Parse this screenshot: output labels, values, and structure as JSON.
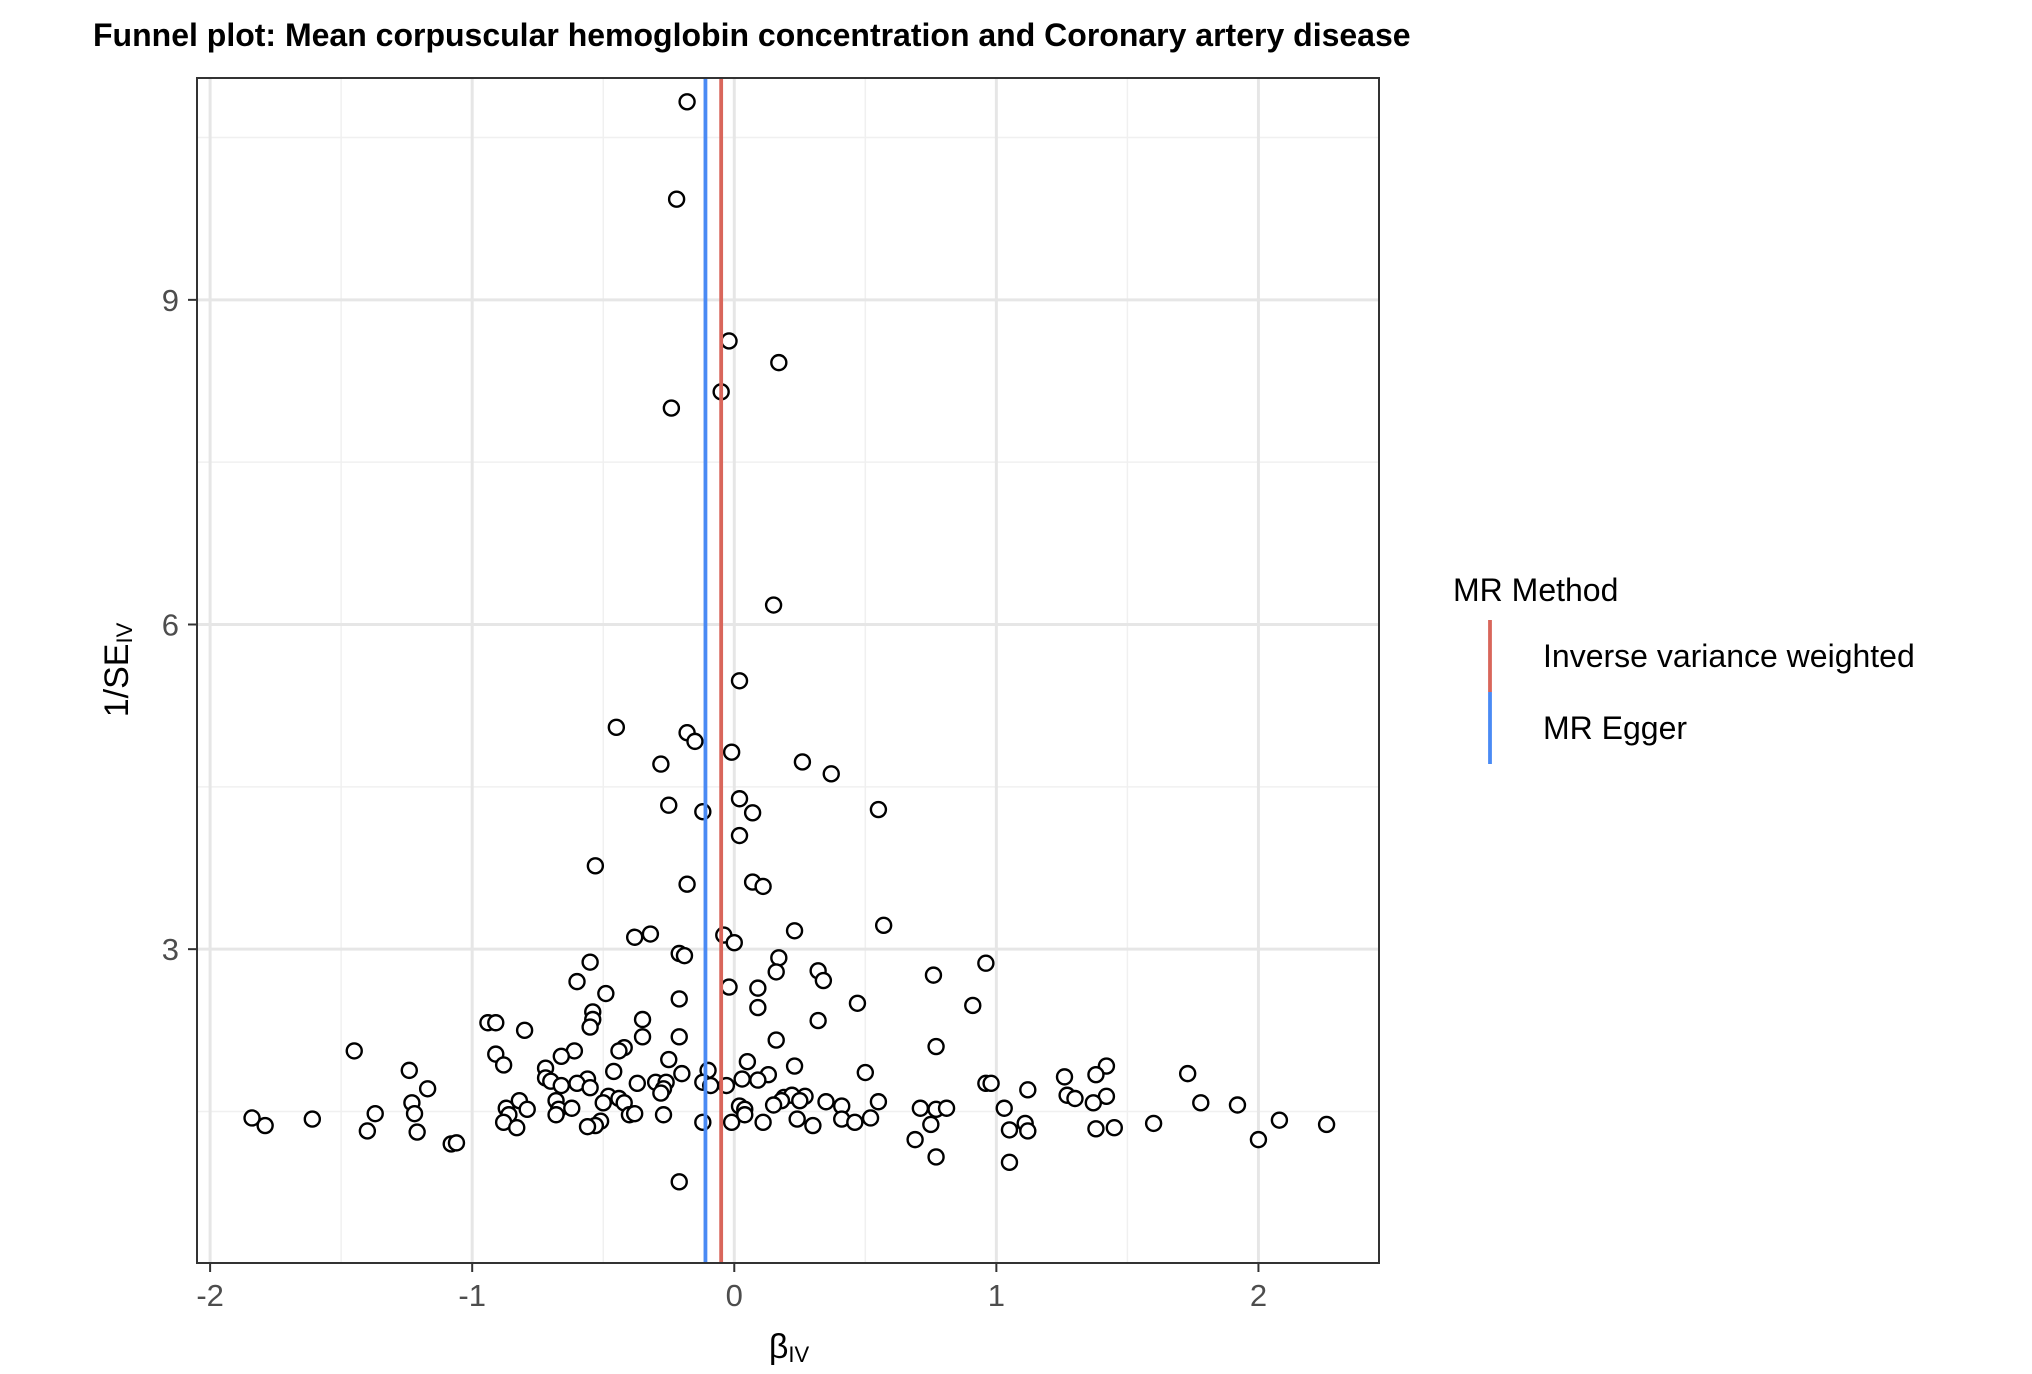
{
  "chart_data": {
    "type": "scatter",
    "title": "Funnel plot: Mean corpuscular hemoglobin concentration and Coronary artery disease",
    "xlabel": {
      "main": "β",
      "sub": "IV"
    },
    "ylabel": {
      "main": "1/SE",
      "sub": "IV"
    },
    "xlim": [
      -2.05,
      2.46
    ],
    "ylim": [
      0.1,
      11.05
    ],
    "x_ticks": [
      -2,
      -1,
      0,
      1,
      2
    ],
    "x_tick_labels": [
      "-2",
      "-1",
      "0",
      "1",
      "2"
    ],
    "y_ticks": [
      3,
      6,
      9
    ],
    "y_tick_labels": [
      "3",
      "6",
      "9"
    ],
    "y_minor_ticks": [
      1.5,
      4.5,
      7.5,
      10.5
    ],
    "x_minor_ticks": [
      -1.5,
      -0.5,
      0.5,
      1.5
    ],
    "grid": true,
    "legend": {
      "title": "MR Method",
      "placement": "right",
      "entries": [
        {
          "label": "Inverse variance weighted",
          "color": "#D9665B"
        },
        {
          "label": "MR Egger",
          "color": "#4A8AF4"
        }
      ]
    },
    "vlines": [
      {
        "method": "Inverse variance weighted",
        "x": -0.05,
        "color": "#D9665B"
      },
      {
        "method": "MR Egger",
        "x": -0.11,
        "color": "#4A8AF4"
      }
    ],
    "points": [
      [
        -0.18,
        10.83
      ],
      [
        -0.22,
        9.93
      ],
      [
        -0.02,
        8.62
      ],
      [
        0.17,
        8.42
      ],
      [
        -0.05,
        8.15
      ],
      [
        -0.24,
        8.0
      ],
      [
        0.15,
        6.18
      ],
      [
        0.02,
        5.48
      ],
      [
        -0.45,
        5.05
      ],
      [
        -0.18,
        5.0
      ],
      [
        -0.15,
        4.92
      ],
      [
        -0.01,
        4.82
      ],
      [
        -0.28,
        4.71
      ],
      [
        0.26,
        4.73
      ],
      [
        0.37,
        4.62
      ],
      [
        0.02,
        4.39
      ],
      [
        -0.25,
        4.33
      ],
      [
        -0.12,
        4.27
      ],
      [
        0.07,
        4.26
      ],
      [
        0.55,
        4.29
      ],
      [
        0.02,
        4.05
      ],
      [
        -0.53,
        3.77
      ],
      [
        0.07,
        3.62
      ],
      [
        -0.18,
        3.6
      ],
      [
        0.11,
        3.58
      ],
      [
        0.57,
        3.22
      ],
      [
        0.23,
        3.17
      ],
      [
        -0.38,
        3.11
      ],
      [
        -0.32,
        3.14
      ],
      [
        -0.04,
        3.13
      ],
      [
        0.0,
        3.06
      ],
      [
        -0.21,
        2.96
      ],
      [
        -0.19,
        2.94
      ],
      [
        0.17,
        2.92
      ],
      [
        -0.55,
        2.88
      ],
      [
        0.96,
        2.87
      ],
      [
        0.32,
        2.8
      ],
      [
        0.16,
        2.79
      ],
      [
        0.76,
        2.76
      ],
      [
        0.34,
        2.71
      ],
      [
        -0.6,
        2.7
      ],
      [
        -0.02,
        2.65
      ],
      [
        0.09,
        2.64
      ],
      [
        -0.49,
        2.59
      ],
      [
        -0.21,
        2.54
      ],
      [
        0.47,
        2.5
      ],
      [
        0.91,
        2.48
      ],
      [
        0.09,
        2.46
      ],
      [
        -0.54,
        2.42
      ],
      [
        -0.54,
        2.35
      ],
      [
        -0.35,
        2.35
      ],
      [
        0.32,
        2.34
      ],
      [
        -0.94,
        2.32
      ],
      [
        -0.91,
        2.32
      ],
      [
        -0.55,
        2.28
      ],
      [
        -0.8,
        2.25
      ],
      [
        -0.35,
        2.19
      ],
      [
        -0.21,
        2.19
      ],
      [
        0.16,
        2.16
      ],
      [
        0.77,
        2.1
      ],
      [
        -1.45,
        2.06
      ],
      [
        -0.42,
        2.09
      ],
      [
        -0.44,
        2.06
      ],
      [
        -0.91,
        2.03
      ],
      [
        -0.61,
        2.06
      ],
      [
        -0.66,
        2.01
      ],
      [
        -0.25,
        1.98
      ],
      [
        0.05,
        1.96
      ],
      [
        -0.88,
        1.93
      ],
      [
        -0.72,
        1.9
      ],
      [
        0.23,
        1.92
      ],
      [
        1.42,
        1.92
      ],
      [
        -1.24,
        1.88
      ],
      [
        -0.46,
        1.87
      ],
      [
        -0.1,
        1.88
      ],
      [
        0.5,
        1.86
      ],
      [
        1.73,
        1.85
      ],
      [
        -0.2,
        1.85
      ],
      [
        0.13,
        1.84
      ],
      [
        1.26,
        1.82
      ],
      [
        1.38,
        1.84
      ],
      [
        -0.72,
        1.81
      ],
      [
        0.09,
        1.79
      ],
      [
        0.03,
        1.8
      ],
      [
        -0.7,
        1.78
      ],
      [
        -0.56,
        1.8
      ],
      [
        -0.6,
        1.76
      ],
      [
        -0.37,
        1.76
      ],
      [
        -0.3,
        1.77
      ],
      [
        -0.26,
        1.77
      ],
      [
        -0.12,
        1.77
      ],
      [
        0.96,
        1.76
      ],
      [
        0.98,
        1.76
      ],
      [
        -0.66,
        1.74
      ],
      [
        -0.09,
        1.74
      ],
      [
        -0.03,
        1.74
      ],
      [
        -0.55,
        1.72
      ],
      [
        -0.27,
        1.71
      ],
      [
        1.12,
        1.7
      ],
      [
        -1.17,
        1.71
      ],
      [
        -0.28,
        1.67
      ],
      [
        -0.48,
        1.64
      ],
      [
        0.19,
        1.63
      ],
      [
        0.22,
        1.65
      ],
      [
        0.27,
        1.64
      ],
      [
        1.27,
        1.65
      ],
      [
        1.3,
        1.62
      ],
      [
        1.42,
        1.64
      ],
      [
        -0.44,
        1.62
      ],
      [
        -0.82,
        1.6
      ],
      [
        -0.68,
        1.6
      ],
      [
        -0.5,
        1.58
      ],
      [
        -0.42,
        1.58
      ],
      [
        0.18,
        1.6
      ],
      [
        0.25,
        1.6
      ],
      [
        0.35,
        1.59
      ],
      [
        0.55,
        1.59
      ],
      [
        1.37,
        1.58
      ],
      [
        1.78,
        1.58
      ],
      [
        1.92,
        1.56
      ],
      [
        -1.23,
        1.58
      ],
      [
        -0.87,
        1.53
      ],
      [
        -0.79,
        1.52
      ],
      [
        -0.67,
        1.52
      ],
      [
        -0.62,
        1.53
      ],
      [
        0.02,
        1.55
      ],
      [
        0.04,
        1.52
      ],
      [
        0.15,
        1.56
      ],
      [
        0.41,
        1.55
      ],
      [
        0.71,
        1.53
      ],
      [
        0.77,
        1.52
      ],
      [
        0.81,
        1.53
      ],
      [
        1.03,
        1.53
      ],
      [
        -1.37,
        1.48
      ],
      [
        -1.22,
        1.48
      ],
      [
        -0.86,
        1.47
      ],
      [
        -0.68,
        1.47
      ],
      [
        -0.4,
        1.47
      ],
      [
        -0.27,
        1.47
      ],
      [
        -0.38,
        1.48
      ],
      [
        0.04,
        1.47
      ],
      [
        0.24,
        1.43
      ],
      [
        0.41,
        1.43
      ],
      [
        0.52,
        1.44
      ],
      [
        -1.84,
        1.44
      ],
      [
        -1.61,
        1.43
      ],
      [
        -0.88,
        1.4
      ],
      [
        -0.51,
        1.41
      ],
      [
        -0.12,
        1.4
      ],
      [
        -0.01,
        1.4
      ],
      [
        0.11,
        1.4
      ],
      [
        0.3,
        1.37
      ],
      [
        0.46,
        1.4
      ],
      [
        0.75,
        1.38
      ],
      [
        1.11,
        1.39
      ],
      [
        1.6,
        1.39
      ],
      [
        2.08,
        1.42
      ],
      [
        2.26,
        1.38
      ],
      [
        -1.79,
        1.37
      ],
      [
        -0.53,
        1.37
      ],
      [
        -0.56,
        1.36
      ],
      [
        -0.83,
        1.35
      ],
      [
        1.05,
        1.33
      ],
      [
        1.12,
        1.32
      ],
      [
        1.38,
        1.34
      ],
      [
        1.45,
        1.35
      ],
      [
        -1.4,
        1.32
      ],
      [
        -1.21,
        1.31
      ],
      [
        0.69,
        1.24
      ],
      [
        -1.08,
        1.2
      ],
      [
        -1.06,
        1.21
      ],
      [
        2.0,
        1.24
      ],
      [
        0.77,
        1.08
      ],
      [
        1.05,
        1.03
      ],
      [
        -0.21,
        0.85
      ]
    ]
  }
}
